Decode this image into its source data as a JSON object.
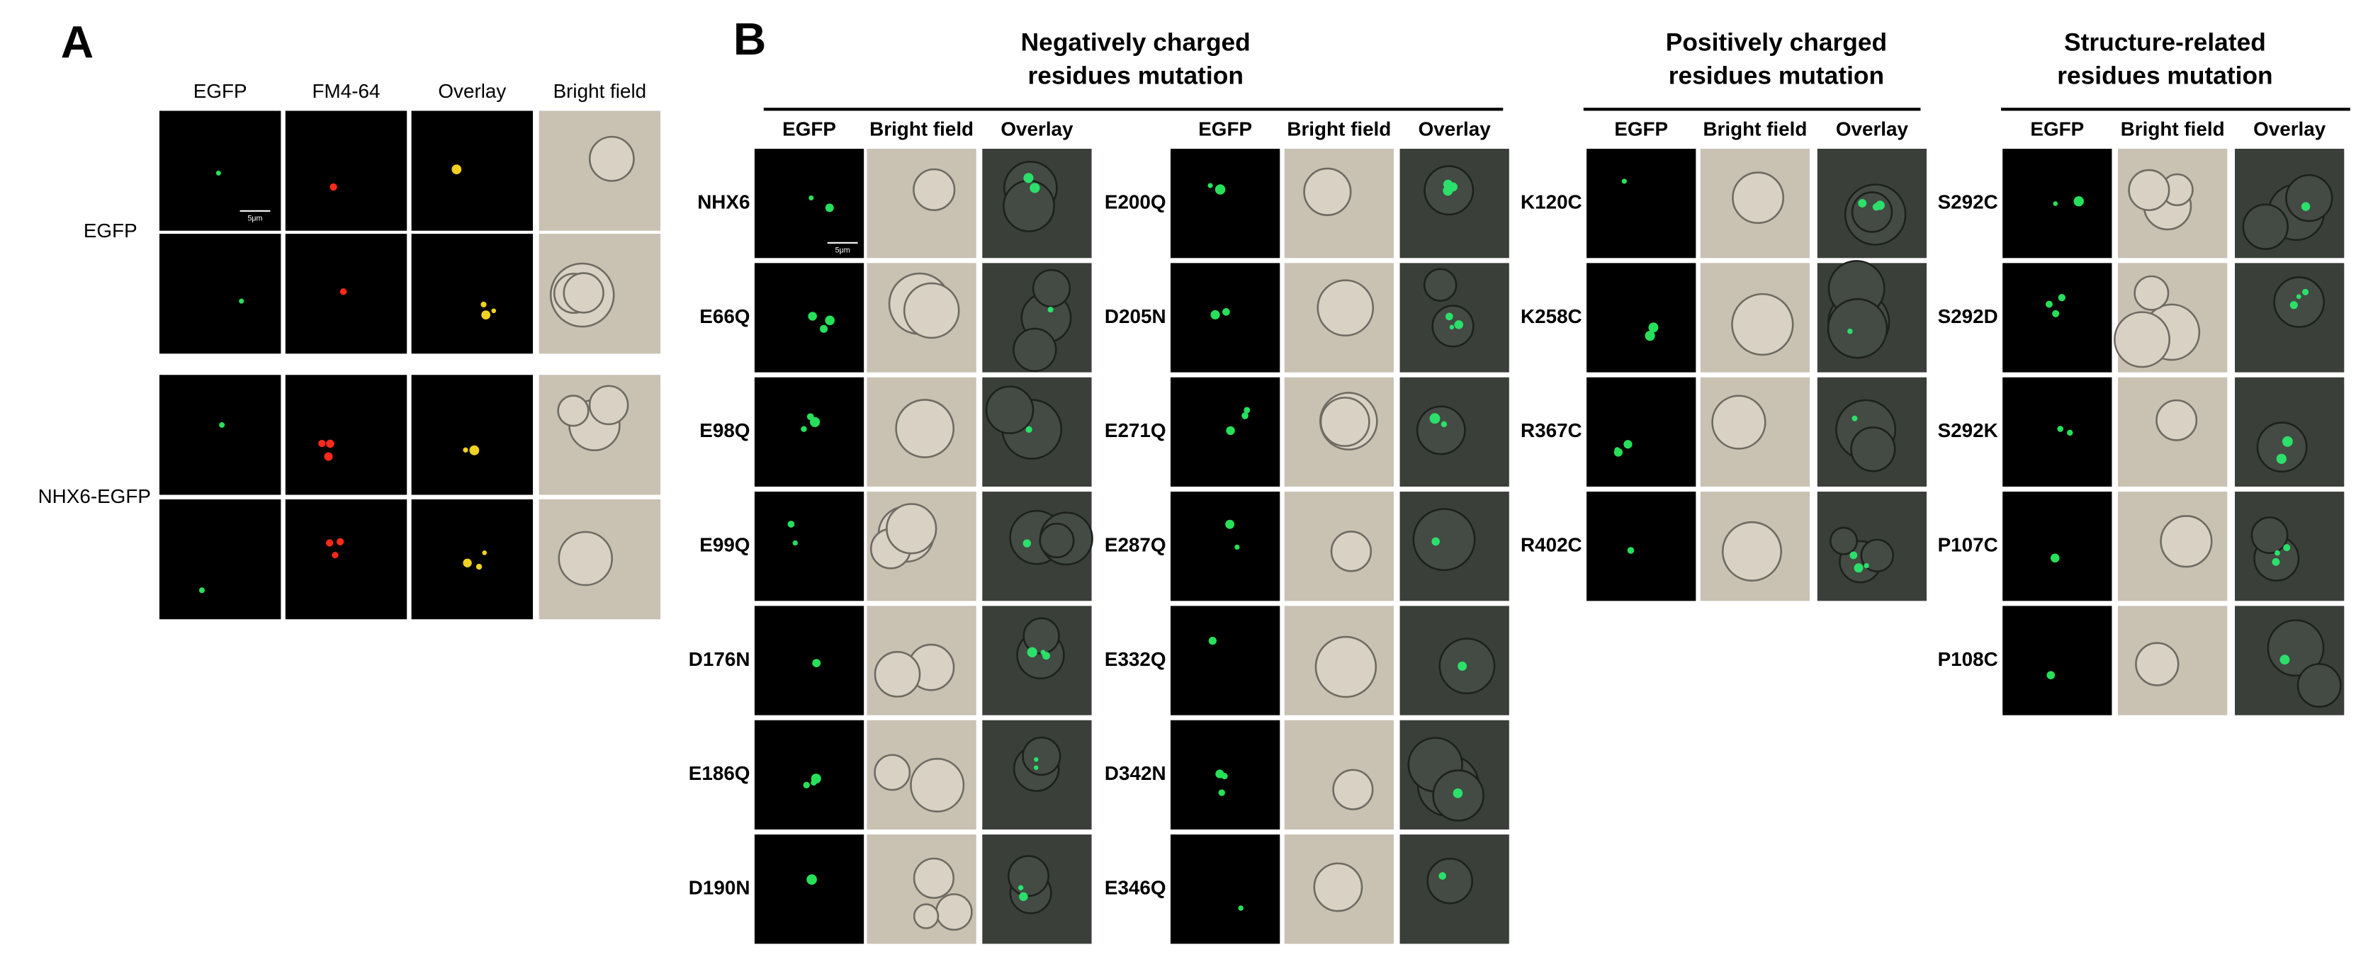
{
  "panel_a": {
    "label": "A",
    "columns": [
      "EGFP",
      "FM4-64",
      "Overlay",
      "Bright field"
    ],
    "rows": [
      "EGFP",
      "NHX6-EGFP"
    ],
    "scale_bar": "5μm"
  },
  "panel_b": {
    "label": "B",
    "scale_bar": "5μm",
    "groups": [
      {
        "title_lines": [
          "Negatively charged",
          "residues  mutation"
        ],
        "blocks": [
          {
            "columns": [
              "EGFP",
              "Bright field",
              "Overlay"
            ],
            "rows": [
              "NHX6",
              "E66Q",
              "E98Q",
              "E99Q",
              "D176N",
              "E186Q",
              "D190N"
            ]
          },
          {
            "columns": [
              "EGFP",
              "Bright field",
              "Overlay"
            ],
            "rows": [
              "E200Q",
              "D205N",
              "E271Q",
              "E287Q",
              "E332Q",
              "D342N",
              "E346Q"
            ]
          }
        ]
      },
      {
        "title_lines": [
          "Positively charged",
          "residues  mutation"
        ],
        "blocks": [
          {
            "columns": [
              "EGFP",
              "Bright field",
              "Overlay"
            ],
            "rows": [
              "K120C",
              "K258C",
              "R367C",
              "R402C"
            ]
          }
        ]
      },
      {
        "title_lines": [
          "Structure-related",
          "residues mutation"
        ],
        "blocks": [
          {
            "columns": [
              "EGFP",
              "Bright field",
              "Overlay"
            ],
            "rows": [
              "S292C",
              "S292D",
              "S292K",
              "P107C",
              "P108C"
            ]
          }
        ]
      }
    ]
  }
}
